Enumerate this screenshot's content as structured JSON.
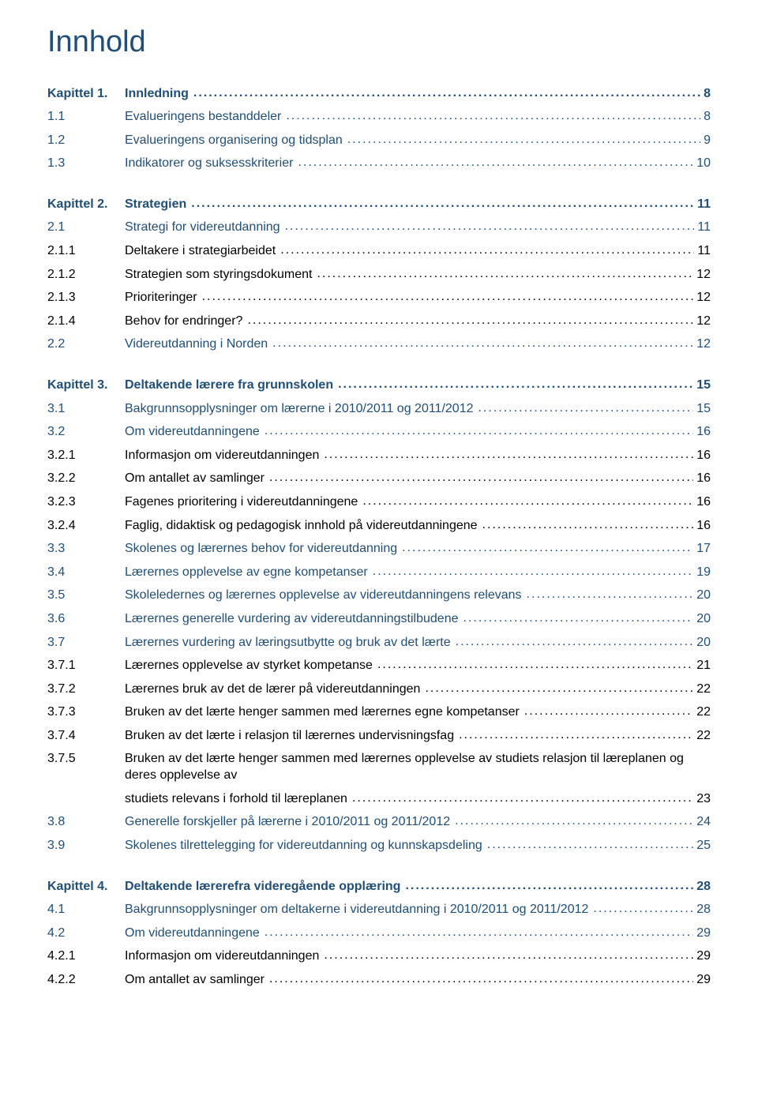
{
  "title": "Innhold",
  "colors": {
    "heading": "#1f4e79",
    "chapter": "#1f4e79",
    "section": "#1f4e79",
    "subsection": "#000000",
    "leader_chapter": "#1f4e79",
    "leader_section": "#1f4e79",
    "leader_subsection": "#000000"
  },
  "typography": {
    "title_fontsize": 38,
    "chapter_fontsize": 16,
    "section_fontsize": 16,
    "subsection_fontsize": 16
  },
  "toc": [
    {
      "type": "chapter",
      "num": "Kapittel 1.",
      "text": "Innledning",
      "page": "8"
    },
    {
      "type": "section",
      "num": "1.1",
      "text": "Evalueringens bestanddeler",
      "page": "8"
    },
    {
      "type": "section",
      "num": "1.2",
      "text": "Evalueringens organisering og tidsplan",
      "page": "9"
    },
    {
      "type": "section",
      "num": "1.3",
      "text": "Indikatorer og suksesskriterier",
      "page": "10"
    },
    {
      "type": "gap"
    },
    {
      "type": "chapter",
      "num": "Kapittel 2.",
      "text": "Strategien",
      "page": "11"
    },
    {
      "type": "section",
      "num": "2.1",
      "text": "Strategi for videreutdanning",
      "page": "11"
    },
    {
      "type": "subsection",
      "num": "2.1.1",
      "text": "Deltakere i strategiarbeidet",
      "page": "11"
    },
    {
      "type": "subsection",
      "num": "2.1.2",
      "text": "Strategien som styringsdokument",
      "page": "12"
    },
    {
      "type": "subsection",
      "num": "2.1.3",
      "text": "Prioriteringer",
      "page": "12"
    },
    {
      "type": "subsection",
      "num": "2.1.4",
      "text": "Behov for endringer?",
      "page": "12"
    },
    {
      "type": "section",
      "num": "2.2",
      "text": "Videreutdanning i Norden",
      "page": "12"
    },
    {
      "type": "gap"
    },
    {
      "type": "chapter",
      "num": "Kapittel 3.",
      "text": "Deltakende lærere fra grunnskolen",
      "page": "15"
    },
    {
      "type": "section",
      "num": "3.1",
      "text": "Bakgrunnsopplysninger om lærerne i 2010/2011 og 2011/2012",
      "page": "15"
    },
    {
      "type": "section",
      "num": "3.2",
      "text": "Om videreutdanningene",
      "page": "16"
    },
    {
      "type": "subsection",
      "num": "3.2.1",
      "text": "Informasjon om videreutdanningen",
      "page": "16"
    },
    {
      "type": "subsection",
      "num": "3.2.2",
      "text": "Om antallet av samlinger",
      "page": "16"
    },
    {
      "type": "subsection",
      "num": "3.2.3",
      "text": "Fagenes prioritering i videreutdanningene",
      "page": "16"
    },
    {
      "type": "subsection",
      "num": "3.2.4",
      "text": "Faglig, didaktisk og pedagogisk innhold på videreutdanningene",
      "page": "16"
    },
    {
      "type": "section",
      "num": "3.3",
      "text": "Skolenes og lærernes behov for videreutdanning",
      "page": "17"
    },
    {
      "type": "section",
      "num": "3.4",
      "text": "Lærernes opplevelse av egne kompetanser",
      "page": "19"
    },
    {
      "type": "section",
      "num": "3.5",
      "text": "Skoleledernes og lærernes opplevelse av videreutdanningens relevans",
      "page": "20"
    },
    {
      "type": "section",
      "num": "3.6",
      "text": "Lærernes generelle vurdering av videreutdanningstilbudene",
      "page": "20"
    },
    {
      "type": "section",
      "num": "3.7",
      "text": "Lærernes vurdering av læringsutbytte og bruk av det lærte",
      "page": "20"
    },
    {
      "type": "subsection",
      "num": "3.7.1",
      "text": "Lærernes opplevelse av styrket kompetanse",
      "page": "21"
    },
    {
      "type": "subsection",
      "num": "3.7.2",
      "text": "Lærernes bruk av det de lærer på videreutdanningen",
      "page": "22"
    },
    {
      "type": "subsection",
      "num": "3.7.3",
      "text": "Bruken av det lærte henger sammen med lærernes egne kompetanser",
      "page": "22"
    },
    {
      "type": "subsection",
      "num": "3.7.4",
      "text": "Bruken av det lærte i relasjon til lærernes undervisningsfag",
      "page": "22"
    },
    {
      "type": "subsection",
      "num": "3.7.5",
      "text": "Bruken av det lærte henger sammen med lærernes opplevelse av studiets relasjon til læreplanen og deres opplevelse av studiets relevans i forhold til læreplanen",
      "page": "23",
      "wrap": true
    },
    {
      "type": "section",
      "num": "3.8",
      "text": "Generelle forskjeller på lærerne i 2010/2011 og 2011/2012",
      "page": "24"
    },
    {
      "type": "section",
      "num": "3.9",
      "text": "Skolenes tilrettelegging for videreutdanning og kunnskapsdeling",
      "page": "25"
    },
    {
      "type": "gap"
    },
    {
      "type": "chapter",
      "num": "Kapittel 4.",
      "text": "Deltakende lærerefra videregående opplæring",
      "page": "28"
    },
    {
      "type": "section",
      "num": "4.1",
      "text": "Bakgrunnsopplysninger om deltakerne i videreutdanning i 2010/2011 og 2011/2012",
      "page": "28"
    },
    {
      "type": "section",
      "num": "4.2",
      "text": "Om videreutdanningene",
      "page": "29"
    },
    {
      "type": "subsection",
      "num": "4.2.1",
      "text": "Informasjon om videreutdanningen",
      "page": "29"
    },
    {
      "type": "subsection",
      "num": "4.2.2",
      "text": "Om antallet av samlinger",
      "page": "29"
    }
  ]
}
